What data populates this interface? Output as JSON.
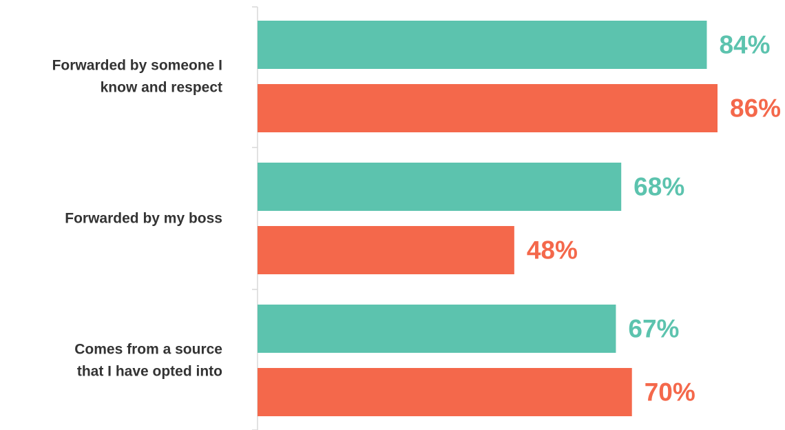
{
  "chart_data": {
    "type": "bar",
    "orientation": "horizontal",
    "categories": [
      [
        "Forwarded by someone I",
        "know and respect"
      ],
      [
        "Forwarded by my boss"
      ],
      [
        "Comes from a source",
        "that I have opted into"
      ]
    ],
    "series": [
      {
        "values": [
          84,
          68,
          67
        ],
        "color": "#5cc3ae"
      },
      {
        "values": [
          86,
          48,
          70
        ],
        "color": "#f4684b"
      }
    ],
    "value_labels": [
      [
        "84%",
        "68%",
        "67%"
      ],
      [
        "86%",
        "48%",
        "70%"
      ]
    ],
    "xlim": [
      0,
      86
    ],
    "grid": false,
    "legend": "none"
  }
}
